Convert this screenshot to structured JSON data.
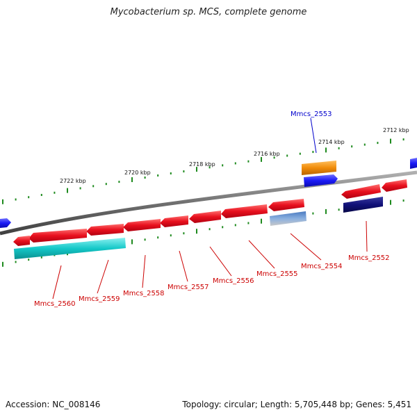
{
  "title": "Mycobacterium sp. MCS, complete genome",
  "accession": "Accession: NC_008146",
  "summary": "Topology: circular; Length: 5,705,448 bp; Genes: 5,451",
  "colors": {
    "backbone": "#7a7a7a",
    "ticks": "#1e8a1e",
    "cds": "#e8101e",
    "cds_blue": "#1a1af5",
    "cds_navy": "#101078",
    "cds_orange": "#f08c0a",
    "cds_cyan": "#14c8c8",
    "cds_steel": "#5a8ac8",
    "red_label": "#cc0000",
    "blue_label": "#0000cc"
  },
  "scale_labels": [
    {
      "text": "2712 kbp"
    },
    {
      "text": "2714 kbp"
    },
    {
      "text": "2716 kbp"
    },
    {
      "text": "2718 kbp"
    },
    {
      "text": "2720 kbp"
    },
    {
      "text": "2722 kbp"
    }
  ],
  "gene_labels": [
    {
      "text": "Mmcs_2553",
      "color": "blue"
    },
    {
      "text": "Mmcs_2552",
      "color": "red"
    },
    {
      "text": "Mmcs_2554",
      "color": "red"
    },
    {
      "text": "Mmcs_2555",
      "color": "red"
    },
    {
      "text": "Mmcs_2556",
      "color": "red"
    },
    {
      "text": "Mmcs_2557",
      "color": "red"
    },
    {
      "text": "Mmcs_2558",
      "color": "red"
    },
    {
      "text": "Mmcs_2559",
      "color": "red"
    },
    {
      "text": "Mmcs_2560",
      "color": "red"
    }
  ]
}
